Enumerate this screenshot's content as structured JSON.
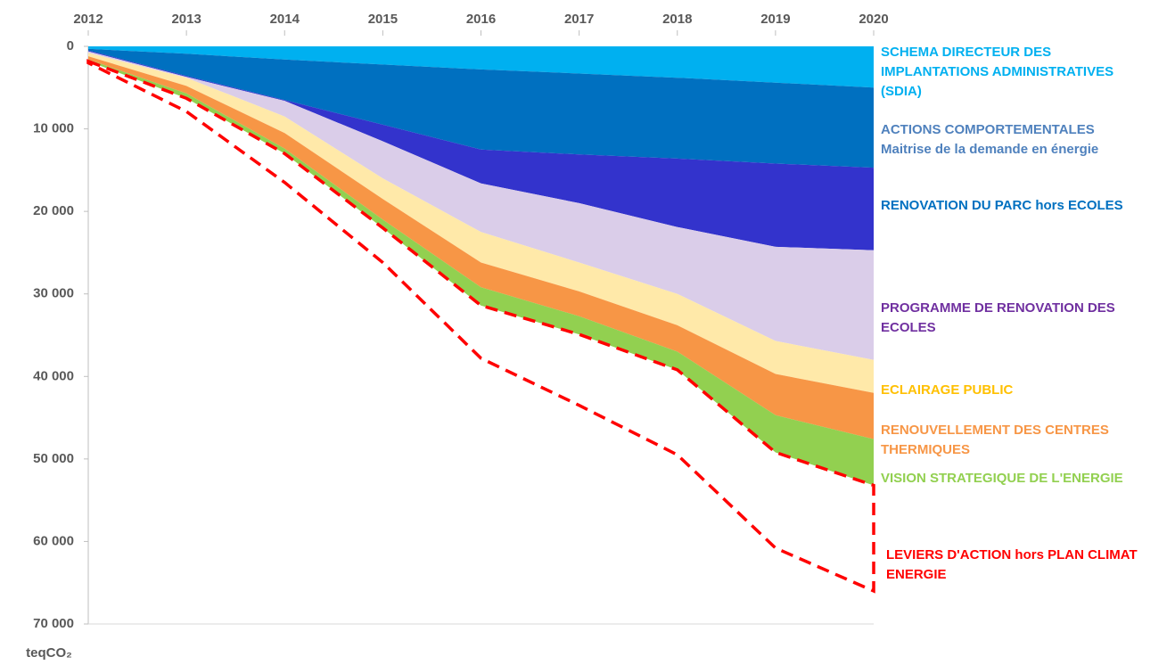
{
  "chart_data": {
    "type": "stacked_area",
    "x": [
      2012,
      2013,
      2014,
      2015,
      2016,
      2017,
      2018,
      2019,
      2020
    ],
    "xlim": [
      2012,
      2020
    ],
    "xticks": [
      2012,
      2013,
      2014,
      2015,
      2016,
      2017,
      2018,
      2019,
      2020
    ],
    "ylim": [
      0,
      70000
    ],
    "y_inverted": true,
    "yticks": [
      0,
      {
        "value": 10000,
        "label": "10 000"
      },
      {
        "value": 20000,
        "label": "20 000"
      },
      {
        "value": 30000,
        "label": "30 000"
      },
      {
        "value": 40000,
        "label": "40 000"
      },
      {
        "value": 50000,
        "label": "50 000"
      },
      {
        "value": 60000,
        "label": "60 000"
      },
      {
        "value": 70000,
        "label": "70 000"
      }
    ],
    "y_label": "teqCO₂",
    "series": [
      {
        "name": "SCHEMA DIRECTEUR DES\nIMPLANTATIONS ADMINISTRATIVES\n(SDIA)",
        "color": "#00b0f0",
        "label_color": "#00b0f0",
        "values": [
          300,
          900,
          1600,
          2200,
          2800,
          3300,
          3800,
          4400,
          5000
        ]
      },
      {
        "name": "ACTIONS COMPORTEMENTALES\nMaitrise de la demande en énergie",
        "color": "#0070c0",
        "label_color": "#4f81bd",
        "values": [
          200,
          2700,
          4900,
          7300,
          9700,
          9800,
          9800,
          9800,
          9700
        ]
      },
      {
        "name": "RENOVATION DU PARC hors ECOLES",
        "color": "#3333cc",
        "label_color": "#0070c0",
        "values": [
          100,
          100,
          100,
          2000,
          4100,
          5900,
          8300,
          10100,
          10000
        ]
      },
      {
        "name": "PROGRAMME DE RENOVATION DES\nECOLES",
        "color": "#dacde9",
        "label_color": "#7030a0",
        "values": [
          200,
          100,
          1900,
          4500,
          5900,
          7200,
          8100,
          11400,
          13300
        ]
      },
      {
        "name": "ECLAIRAGE PUBLIC",
        "color": "#ffe9a9",
        "label_color": "#ffc000",
        "values": [
          400,
          1000,
          2000,
          2500,
          3700,
          3500,
          3800,
          4000,
          4000
        ]
      },
      {
        "name": "RENOUVELLEMENT DES CENTRES\nTHERMIQUES",
        "color": "#f79646",
        "label_color": "#f79646",
        "values": [
          400,
          900,
          1900,
          2500,
          3000,
          3000,
          3200,
          5000,
          5600
        ]
      },
      {
        "name": "VISION STRATEGIQUE DE L'ENERGIE",
        "color": "#92d050",
        "label_color": "#92d050",
        "values": [
          200,
          600,
          600,
          1000,
          2200,
          2200,
          2200,
          4500,
          5600
        ]
      },
      {
        "name": "LEVIERS D'ACTION hors PLAN CLIMAT\nENERGIE",
        "color": "#ff0000",
        "label_color": "#ff0000",
        "dashed": true,
        "values": [
          200,
          1600,
          3500,
          4200,
          6400,
          8600,
          10300,
          11600,
          12800
        ]
      }
    ]
  }
}
